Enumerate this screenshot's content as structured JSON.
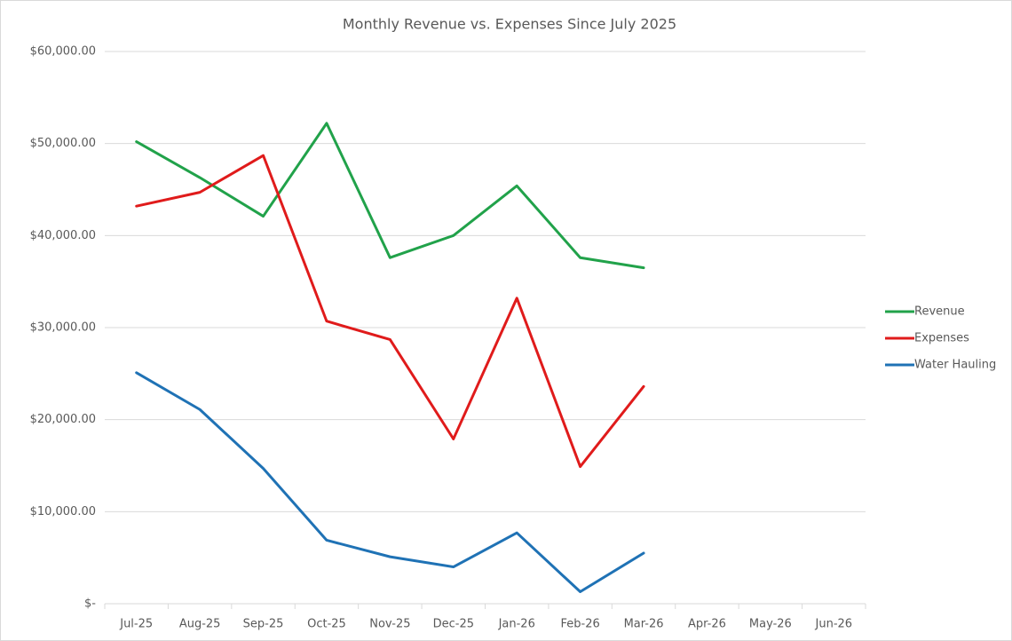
{
  "chart_data": {
    "type": "line",
    "title": "Monthly Revenue vs. Expenses Since July 2025",
    "categories": [
      "Jul-25",
      "Aug-25",
      "Sep-25",
      "Oct-25",
      "Nov-25",
      "Dec-25",
      "Jan-26",
      "Feb-26",
      "Mar-26",
      "Apr-26",
      "May-26",
      "Jun-26"
    ],
    "series": [
      {
        "name": "Revenue",
        "color": "#21a24a",
        "values": [
          50200,
          46300,
          42100,
          52200,
          37600,
          40000,
          45400,
          37600,
          36500,
          null,
          null,
          null
        ]
      },
      {
        "name": "Expenses",
        "color": "#e01b1b",
        "values": [
          43200,
          44700,
          48700,
          30700,
          28700,
          17900,
          33200,
          14900,
          23600,
          null,
          null,
          null
        ]
      },
      {
        "name": "Water Hauling",
        "color": "#1f72b5",
        "values": [
          25100,
          21100,
          14700,
          6900,
          5100,
          4000,
          7700,
          1300,
          5500,
          null,
          null,
          null
        ]
      }
    ],
    "ylim": [
      0,
      60000
    ],
    "yticks": [
      {
        "value": 0,
        "label": "$-"
      },
      {
        "value": 10000,
        "label": "$10,000.00"
      },
      {
        "value": 20000,
        "label": "$20,000.00"
      },
      {
        "value": 30000,
        "label": "$30,000.00"
      },
      {
        "value": 40000,
        "label": "$40,000.00"
      },
      {
        "value": 50000,
        "label": "$50,000.00"
      },
      {
        "value": 60000,
        "label": "$60,000.00"
      }
    ],
    "grid": true,
    "legend": "right"
  }
}
